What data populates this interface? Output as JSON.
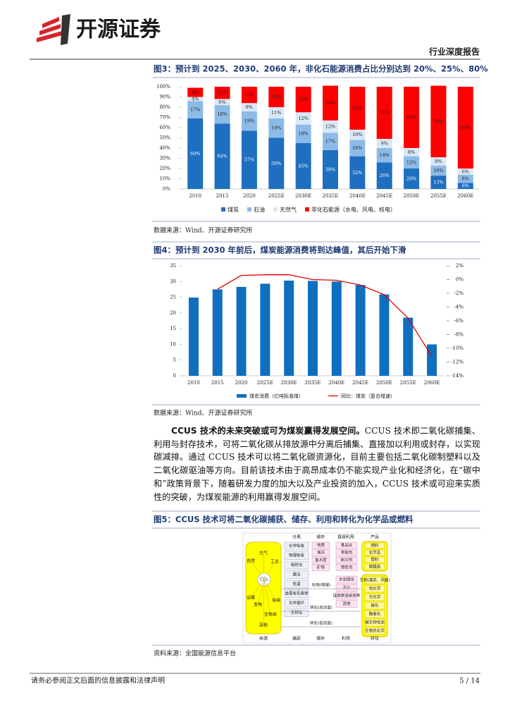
{
  "header": {
    "logo_text": "开源证券",
    "report_type": "行业深度报告"
  },
  "chart_data": [
    {
      "type": "stacked_bar",
      "title": "图3：预计到 2025、2030、2060 年，非化石能源消费占比分别达到 20%、25%、80%",
      "source": "数据来源：Wind、开源证券研究所",
      "categories": [
        "2010",
        "2015",
        "2020",
        "2025E",
        "2030E",
        "2035E",
        "2040E",
        "2045E",
        "2050E",
        "2055E",
        "2060E"
      ],
      "series": [
        {
          "name": "煤炭",
          "color": "#1f6fc0",
          "values": [
            69,
            64,
            57,
            50,
            45,
            38,
            32,
            26,
            20,
            13,
            6
          ],
          "value_labels": [
            "69%",
            "64%",
            "57%",
            "50%",
            "45%",
            "38%",
            "32%",
            "26%",
            "20%",
            "13%",
            "6%"
          ]
        },
        {
          "name": "石油",
          "color": "#8dbbe8",
          "values": [
            17,
            18,
            19,
            19,
            18,
            17,
            16,
            14,
            12,
            10,
            8
          ],
          "value_labels": [
            "17%",
            "18%",
            "19%",
            "19%",
            "18%",
            "17%",
            "16%",
            "14%",
            "12%",
            "10%",
            "8%"
          ]
        },
        {
          "name": "天然气",
          "color": "#d9e8f7",
          "values": [
            4,
            6,
            8,
            11,
            12,
            12,
            10,
            9,
            8,
            8,
            6
          ],
          "value_labels": [
            "4%",
            "6%",
            "8%",
            "11%",
            "12%",
            "12%",
            "10%",
            "9%",
            "8%",
            "8%",
            "6%"
          ]
        },
        {
          "name": "非化石能源（水电、风电、核电）",
          "color": "#ff0000",
          "values": [
            9,
            12,
            16,
            20,
            25,
            34,
            42,
            51,
            60,
            70,
            80
          ],
          "value_labels": [
            "9%",
            "12%",
            "16%",
            "20%",
            "25%",
            "34%",
            "42%",
            "51%",
            "60%",
            "70%",
            "80%"
          ]
        }
      ],
      "ylim": [
        0,
        100
      ],
      "yticks": [
        {
          "value": 0,
          "label": "0%"
        },
        {
          "value": 10,
          "label": "10%"
        },
        {
          "value": 20,
          "label": "20%"
        },
        {
          "value": 30,
          "label": "30%"
        },
        {
          "value": 40,
          "label": "40%"
        },
        {
          "value": 50,
          "label": "50%"
        },
        {
          "value": 60,
          "label": "60%"
        },
        {
          "value": 70,
          "label": "70%"
        },
        {
          "value": 80,
          "label": "80%"
        },
        {
          "value": 90,
          "label": "90%"
        },
        {
          "value": 100,
          "label": "100%"
        }
      ],
      "grid": false
    },
    {
      "type": "combo",
      "title": "图4：预计到 2030 年前后，煤炭能源消费将到达峰值，其后开始下滑",
      "source": "数据来源：Wind、开源证券研究所",
      "categories": [
        "2010",
        "2015",
        "2020",
        "2025E",
        "2030E",
        "2035E",
        "2040E",
        "2045E",
        "2050E",
        "2055E",
        "2060E"
      ],
      "series": [
        {
          "name": "煤炭消费（亿吨标准煤）",
          "color": "#0f6fbf",
          "kind": "bar",
          "axis": "y",
          "values": [
            24.9,
            27.5,
            28.3,
            29.3,
            30.3,
            30.2,
            30.0,
            28.9,
            25.9,
            18.5,
            10.0
          ]
        },
        {
          "name": "同比：煤炭（复合增速）",
          "color": "#e00000",
          "kind": "line",
          "axis": "y2",
          "values": [
            null,
            -1.4,
            0.6,
            0.7,
            0.7,
            0.0,
            -0.1,
            -0.8,
            -2.2,
            -5.6,
            -11.2
          ]
        }
      ],
      "ylim": [
        0,
        35
      ],
      "yticks": [
        0,
        5,
        10,
        15,
        20,
        25,
        30,
        35
      ],
      "y2lim": [
        -14,
        2
      ],
      "y2ticks": [
        {
          "value": 2,
          "label": "2%"
        },
        {
          "value": 0,
          "label": "0%"
        },
        {
          "value": -2,
          "label": "-2%"
        },
        {
          "value": -4,
          "label": "-4%"
        },
        {
          "value": -6,
          "label": "-6%"
        },
        {
          "value": -8,
          "label": "-8%"
        },
        {
          "value": -10,
          "label": "-10%"
        },
        {
          "value": -12,
          "label": "-12%"
        },
        {
          "value": -14,
          "label": "-14%"
        }
      ],
      "grid": false
    }
  ],
  "paragraph": {
    "lead": "CCUS 技术的未来突破或可为煤炭赢得发展空间。",
    "body": "CCUS 技术即二氧化碳捕集、利用与封存技术，可将二氧化碳从排放源中分离后捕集、直接加以利用或封存，以实现碳减排。通过 CCUS 技术可以将二氧化碳资源化，目前主要包括二氧化碳制塑料以及二氧化碳驱油等方向。目前该技术由于高昂成本仍不能实现产业化和经济化，在“碳中和”政策背景下，随着研发力度的加大以及产业投资的加入，CCUS 技术或可迎来实质性的突破，为煤炭能源的利用赢得发展空间。"
  },
  "figure5": {
    "title": "图5：CCUS 技术可将二氧化碳捕获、储存、利用和转化为化学品或燃料",
    "source": "资料来源：全国能源信息平台",
    "source_items": [
      "空气",
      "自然",
      "工业",
      "CO₂",
      "运输",
      "发电",
      "车辆",
      "生物体",
      "其他"
    ],
    "headings": [
      "分离",
      "储存",
      "直接利用",
      "产品"
    ],
    "separation": [
      "化学吸收",
      "物理吸收",
      "吸附法",
      "膜法",
      "低温",
      "金属有机骨架",
      "化学循环",
      "生物法"
    ],
    "storage": [
      "地质",
      "海洋",
      "盐水层",
      "矿物"
    ],
    "direct_use": [
      "食品业",
      "萃取剂",
      "制冷剂",
      "惰性剂"
    ],
    "utilization": [
      "水泥固化",
      "灭火",
      "提高原油采收率",
      "其他"
    ],
    "products_top": [
      "燃料",
      "化学品",
      "塑料",
      "碳酸盐"
    ],
    "products_bottom": [
      "生物(藻类、风能)",
      "电化学",
      "光化学",
      "催化",
      "酶催化",
      "微生物电池",
      "生物热化学"
    ],
    "flows": [
      "利用(物理)",
      "转化(高浓度)",
      "转化(低浓度)"
    ],
    "stages": [
      "来源",
      "捕获",
      "储存",
      "利用",
      "转化"
    ]
  },
  "footer": {
    "disclaimer": "请务必参阅正文后面的信息披露和法律声明",
    "page": "5 / 14"
  }
}
